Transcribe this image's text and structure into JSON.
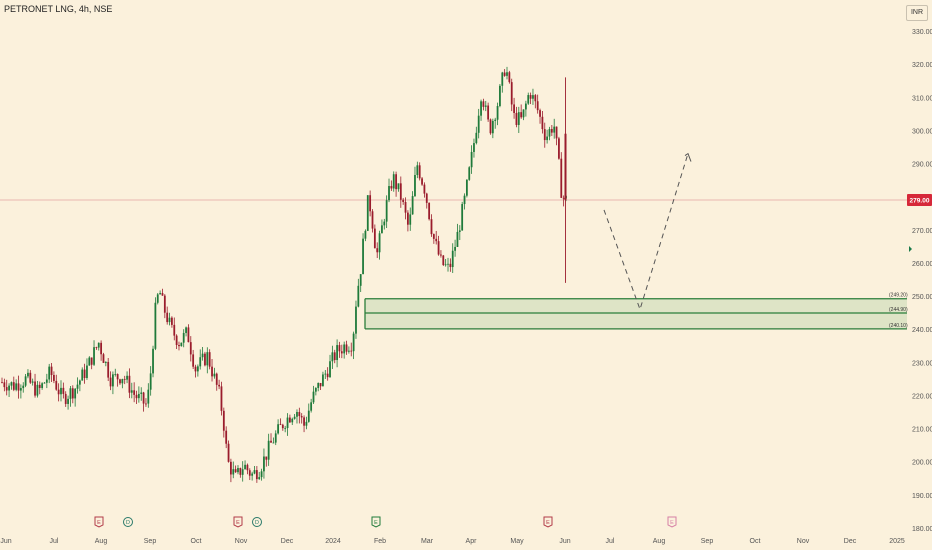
{
  "header": {
    "title": "PETRONET LNG, 4h, NSE",
    "currency": "INR"
  },
  "chart_data": {
    "type": "candlestick",
    "title": "PETRONET LNG, 4h, NSE",
    "ylim": [
      180,
      330
    ],
    "y_ticks": [
      "330.00",
      "320.00",
      "310.00",
      "300.00",
      "290.00",
      "280.00",
      "270.00",
      "260.00",
      "250.00",
      "240.00",
      "230.00",
      "220.00",
      "210.00",
      "200.00",
      "190.00",
      "180.00"
    ],
    "x_labels": [
      "Jun",
      "Jul",
      "Aug",
      "Sep",
      "Oct",
      "Nov",
      "Dec",
      "2024",
      "Feb",
      "Mar",
      "Apr",
      "May",
      "Jun",
      "Jul",
      "Aug",
      "Sep",
      "Oct",
      "Nov",
      "Dec",
      "2025"
    ],
    "price_path": [
      [
        0,
        224
      ],
      [
        3,
        223
      ],
      [
        6,
        225
      ],
      [
        9,
        221
      ],
      [
        12,
        227
      ],
      [
        15,
        219
      ],
      [
        18,
        222
      ],
      [
        21,
        228
      ],
      [
        24,
        236
      ],
      [
        27,
        225
      ],
      [
        30,
        226
      ],
      [
        33,
        220
      ],
      [
        36,
        217
      ],
      [
        37,
        228
      ],
      [
        38,
        245
      ],
      [
        39,
        252
      ],
      [
        40,
        247
      ],
      [
        42,
        240
      ],
      [
        44,
        236
      ],
      [
        46,
        239
      ],
      [
        48,
        228
      ],
      [
        51,
        232
      ],
      [
        54,
        220
      ],
      [
        55,
        212
      ],
      [
        56,
        200
      ],
      [
        58,
        195
      ],
      [
        60,
        199
      ],
      [
        62,
        196
      ],
      [
        64,
        198
      ],
      [
        67,
        206
      ],
      [
        70,
        212
      ],
      [
        73,
        216
      ],
      [
        75,
        211
      ],
      [
        77,
        219
      ],
      [
        80,
        226
      ],
      [
        83,
        233
      ],
      [
        85,
        235
      ],
      [
        87,
        236
      ],
      [
        88,
        250
      ],
      [
        89,
        258
      ],
      [
        90,
        270
      ],
      [
        91,
        280
      ],
      [
        92,
        272
      ],
      [
        93,
        262
      ],
      [
        95,
        275
      ],
      [
        97,
        286
      ],
      [
        99,
        280
      ],
      [
        101,
        270
      ],
      [
        103,
        290
      ],
      [
        105,
        282
      ],
      [
        107,
        268
      ],
      [
        109,
        260
      ],
      [
        111,
        258
      ],
      [
        113,
        268
      ],
      [
        115,
        280
      ],
      [
        117,
        295
      ],
      [
        119,
        312
      ],
      [
        121,
        300
      ],
      [
        123,
        308
      ],
      [
        125,
        320
      ],
      [
        127,
        304
      ],
      [
        129,
        303
      ],
      [
        131,
        312
      ],
      [
        133,
        306
      ],
      [
        135,
        298
      ],
      [
        137,
        302
      ],
      [
        138,
        292
      ],
      [
        139,
        280
      ],
      [
        140,
        279
      ]
    ],
    "last_price": "279.00",
    "zones": [
      {
        "label": "249.20",
        "value": 249.2,
        "color": "#2a7d3a"
      },
      {
        "label": "244.90",
        "value": 244.9,
        "color": "#2a7d3a"
      },
      {
        "label": "240.10",
        "value": 240.1,
        "color": "#2a7d3a"
      }
    ],
    "projection": [
      {
        "x": "Jul",
        "y": 276
      },
      {
        "x": "Aug",
        "y": 246
      },
      {
        "x": "Sep",
        "y": 293
      }
    ],
    "events": [
      {
        "x": "Aug",
        "glyph": "E",
        "kind": "earnings"
      },
      {
        "x": "Aug",
        "glyph": "D",
        "kind": "dividend"
      },
      {
        "x": "Nov",
        "glyph": "E",
        "kind": "earnings"
      },
      {
        "x": "Nov",
        "glyph": "D",
        "kind": "dividend"
      },
      {
        "x": "2024",
        "glyph": "E",
        "kind": "earnings-green"
      },
      {
        "x": "May",
        "glyph": "E",
        "kind": "earnings"
      },
      {
        "x": "Aug",
        "glyph": "E",
        "kind": "earnings-future"
      }
    ],
    "colors": {
      "up": "#1f7a3a",
      "down": "#9a1c2c",
      "zone": "#2a7d3a",
      "price_line": "#e3a2a2",
      "price_badge": "#d62839",
      "axis_text": "#555555",
      "projection": "#555555",
      "background": "#fbf1dc"
    }
  }
}
